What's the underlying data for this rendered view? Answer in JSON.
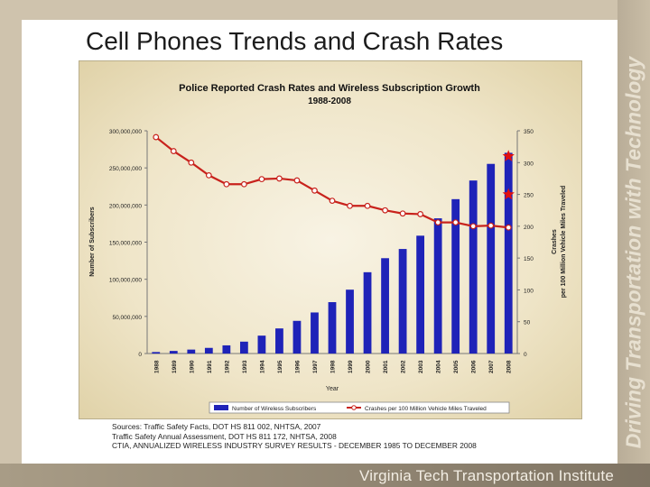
{
  "slide": {
    "title": "Cell Phones Trends and Crash Rates",
    "side_text": "Driving Transportation with Technology",
    "footer": "Virginia Tech Transportation Institute"
  },
  "sources": [
    "Sources: Traffic Safety Facts, DOT HS 811 002, NHTSA, 2007",
    "Traffic Safety Annual Assessment, DOT HS 811 172, NHTSA, 2008",
    "CTIA, ANNUALIZED WIRELESS INDUSTRY SURVEY RESULTS - DECEMBER 1985 TO DECEMBER 2008"
  ],
  "chart_data": {
    "type": "bar",
    "title": "Police Reported Crash Rates and Wireless Subscription Growth",
    "subtitle": "1988-2008",
    "xlabel": "Year",
    "ylabel": "Number of Subscribers",
    "y2label": [
      "Crashes",
      "per 100 Million Vehicle Miles Traveled"
    ],
    "categories": [
      "1988",
      "1989",
      "1990",
      "1991",
      "1992",
      "1993",
      "1994",
      "1995",
      "1996",
      "1997",
      "1998",
      "1999",
      "2000",
      "2001",
      "2002",
      "2003",
      "2004",
      "2005",
      "2006",
      "2007",
      "2008"
    ],
    "ylim": [
      0,
      300000000
    ],
    "y_ticks": [
      "0",
      "50,000,000",
      "100,000,000",
      "150,000,000",
      "200,000,000",
      "250,000,000",
      "300,000,000"
    ],
    "y2lim": [
      0,
      350
    ],
    "y2_ticks": [
      "0",
      "50",
      "100",
      "150",
      "200",
      "250",
      "300",
      "350"
    ],
    "series": [
      {
        "name": "Number of Wireless Subscribers",
        "axis": "left",
        "kind": "bar",
        "color": "#1f23b8",
        "values": [
          2000000,
          3500000,
          5300000,
          7600000,
          11000000,
          16000000,
          24100000,
          33800000,
          44000000,
          55300000,
          69200000,
          86000000,
          109500000,
          128400000,
          140800000,
          158700000,
          182100000,
          207900000,
          233000000,
          255400000,
          270300000
        ]
      },
      {
        "name": "Crashes per 100 Million Vehicle Miles Traveled",
        "axis": "right",
        "kind": "line",
        "color": "#c8221c",
        "values": [
          340,
          318,
          300,
          280,
          266,
          266,
          274,
          275,
          272,
          256,
          240,
          232,
          232,
          225,
          220,
          219,
          206,
          206,
          200,
          201,
          198
        ]
      }
    ],
    "markers": [
      {
        "year": "2008",
        "value": 310,
        "axis": "right",
        "shape": "star",
        "color": "#e01010"
      },
      {
        "year": "2008",
        "value": 250,
        "axis": "right",
        "shape": "star",
        "color": "#e01010"
      }
    ],
    "legend": {
      "position": "bottom"
    }
  }
}
